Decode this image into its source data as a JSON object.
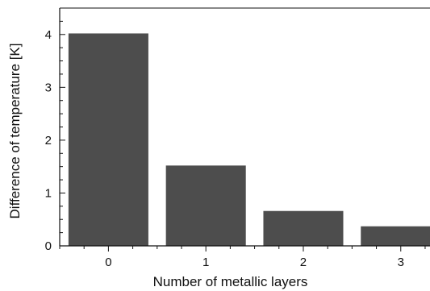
{
  "chart_data": {
    "type": "bar",
    "title": "",
    "xlabel": "Number of metallic layers",
    "ylabel": "Difference of temperature [K]",
    "categories": [
      "0",
      "1",
      "2",
      "3"
    ],
    "values": [
      4.02,
      1.52,
      0.66,
      0.37
    ],
    "x_ticks": [
      0,
      1,
      2,
      3
    ],
    "y_ticks": [
      0,
      1,
      2,
      3,
      4
    ],
    "ylim": [
      0,
      4.5
    ],
    "xlim": [
      -0.5,
      3.3
    ],
    "bar_color": "#4d4d4d",
    "axis_color": "#111111",
    "grid": false,
    "legend": "none"
  }
}
